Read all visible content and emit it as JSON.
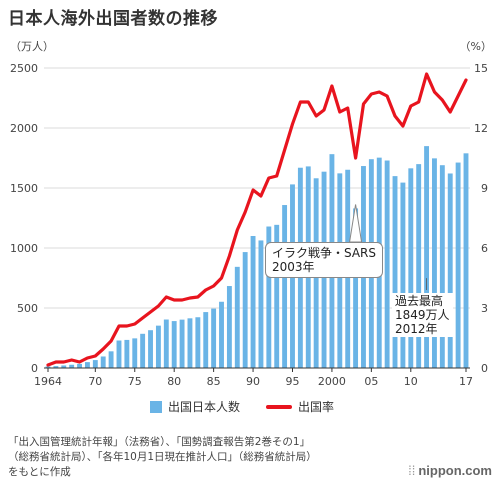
{
  "title": "日本人海外出国者数の推移",
  "unit_left": "（万人）",
  "unit_right": "（%）",
  "legend": {
    "bar_label": "出国日本人数",
    "line_label": "出国率"
  },
  "source_lines": [
    "「出入国管理統計年報」（法務省）、「国勢調査報告第2巻その1」",
    "（総務省統計局）、「各年10月1日現在推計人口」（総務省統計局）",
    "をもとに作成"
  ],
  "brand": "nippon.com",
  "brand_mark": "⁞⁞",
  "annotations": {
    "iraq": {
      "line1": "イラク戦争・SARS",
      "line2": "2003年"
    },
    "peak": {
      "line1": "過去最高",
      "line2": "1849万人",
      "line3": "2012年"
    }
  },
  "chart_data": {
    "type": "bar",
    "title": "日本人海外出国者数の推移",
    "x": [
      1964,
      1965,
      1966,
      1967,
      1968,
      1969,
      1970,
      1971,
      1972,
      1973,
      1974,
      1975,
      1976,
      1977,
      1978,
      1979,
      1980,
      1981,
      1982,
      1983,
      1984,
      1985,
      1986,
      1987,
      1988,
      1989,
      1990,
      1991,
      1992,
      1993,
      1994,
      1995,
      1996,
      1997,
      1998,
      1999,
      2000,
      2001,
      2002,
      2003,
      2004,
      2005,
      2006,
      2007,
      2008,
      2009,
      2010,
      2011,
      2012,
      2013,
      2014,
      2015,
      2016,
      2017
    ],
    "x_tick_labels": [
      {
        "x": 1964,
        "label": "1964"
      },
      {
        "x": 1970,
        "label": "70"
      },
      {
        "x": 1975,
        "label": "75"
      },
      {
        "x": 1980,
        "label": "80"
      },
      {
        "x": 1985,
        "label": "85"
      },
      {
        "x": 1990,
        "label": "90"
      },
      {
        "x": 1995,
        "label": "95"
      },
      {
        "x": 2000,
        "label": "2000"
      },
      {
        "x": 2005,
        "label": "05"
      },
      {
        "x": 2010,
        "label": "10"
      },
      {
        "x": 2017,
        "label": "17"
      }
    ],
    "series": [
      {
        "name": "出国日本人数",
        "type": "bar",
        "axis": "left",
        "color": "#6ab4e6",
        "values": [
          13,
          16,
          21,
          27,
          34,
          49,
          66,
          96,
          139,
          229,
          234,
          247,
          285,
          315,
          353,
          404,
          391,
          403,
          414,
          423,
          466,
          495,
          552,
          683,
          843,
          966,
          1100,
          1063,
          1179,
          1193,
          1358,
          1530,
          1669,
          1680,
          1581,
          1636,
          1782,
          1622,
          1652,
          1330,
          1683,
          1740,
          1753,
          1729,
          1599,
          1545,
          1664,
          1699,
          1849,
          1747,
          1690,
          1621,
          1712,
          1789
        ]
      },
      {
        "name": "出国率",
        "type": "line",
        "axis": "right",
        "color": "#e8141e",
        "values": [
          0.15,
          0.3,
          0.3,
          0.4,
          0.3,
          0.5,
          0.6,
          0.95,
          1.35,
          2.1,
          2.1,
          2.2,
          2.5,
          2.8,
          3.1,
          3.55,
          3.4,
          3.4,
          3.5,
          3.55,
          3.9,
          4.1,
          4.5,
          5.6,
          6.9,
          7.8,
          8.9,
          8.6,
          9.5,
          9.6,
          10.9,
          12.2,
          13.3,
          13.3,
          12.6,
          12.9,
          14.1,
          12.8,
          13.0,
          10.5,
          13.2,
          13.7,
          13.8,
          13.6,
          12.6,
          12.1,
          13.1,
          13.3,
          14.7,
          13.8,
          13.4,
          12.8,
          13.6,
          14.4
        ]
      }
    ],
    "ylim_left": [
      0,
      2500
    ],
    "ylim_right": [
      0,
      15
    ],
    "y_ticks_left": [
      0,
      500,
      1000,
      1500,
      2000,
      2500
    ],
    "y_ticks_right": [
      0,
      3,
      6,
      9,
      12,
      15
    ],
    "grid": true,
    "legend_position": "bottom"
  }
}
